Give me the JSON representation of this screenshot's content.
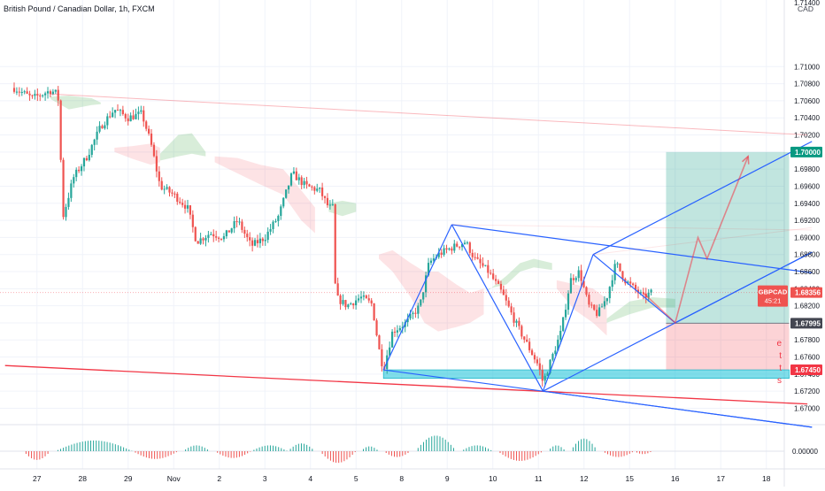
{
  "header": {
    "title": "British Pound / Canadian Dollar, 1h, FXCM",
    "currency": "CAD"
  },
  "chart_data": {
    "type": "candlestick",
    "symbol": "GBPCAD",
    "last_price": "1.68356",
    "countdown": "45:21",
    "ylim": [
      1.6686,
      1.7178
    ],
    "y_ticks": [
      "1.71000",
      "1.70800",
      "1.70600",
      "1.70400",
      "1.70200",
      "1.70000",
      "1.69800",
      "1.69600",
      "1.69400",
      "1.69200",
      "1.69000",
      "1.68800",
      "1.68600",
      "1.68400",
      "1.68200",
      "1.68000",
      "1.67800",
      "1.67600",
      "1.67400",
      "1.67200",
      "1.67000"
    ],
    "top_partial_tick": "1.71400",
    "x_ticks": [
      {
        "label": "27",
        "x": 0.5
      },
      {
        "label": "28",
        "x": 1.5
      },
      {
        "label": "29",
        "x": 2.5
      },
      {
        "label": "Nov",
        "x": 3.5
      },
      {
        "label": "2",
        "x": 4.5
      },
      {
        "label": "3",
        "x": 5.5
      },
      {
        "label": "4",
        "x": 6.5
      },
      {
        "label": "5",
        "x": 7.5
      },
      {
        "label": "8",
        "x": 8.5
      },
      {
        "label": "9",
        "x": 9.5
      },
      {
        "label": "10",
        "x": 10.5
      },
      {
        "label": "11",
        "x": 11.5
      },
      {
        "label": "12",
        "x": 12.5
      },
      {
        "label": "15",
        "x": 13.5
      },
      {
        "label": "16",
        "x": 14.5
      },
      {
        "label": "17",
        "x": 15.5
      },
      {
        "label": "18",
        "x": 16.5
      }
    ],
    "close_path": [
      [
        0.0,
        1.7075
      ],
      [
        0.4,
        1.7063
      ],
      [
        0.8,
        1.7072
      ],
      [
        0.95,
        1.7068
      ],
      [
        1.0,
        1.7048
      ],
      [
        1.05,
        1.692
      ],
      [
        1.3,
        1.697
      ],
      [
        1.6,
        1.6995
      ],
      [
        1.9,
        1.703
      ],
      [
        2.2,
        1.705
      ],
      [
        2.5,
        1.704
      ],
      [
        2.8,
        1.7045
      ],
      [
        3.0,
        1.701
      ],
      [
        3.2,
        1.696
      ],
      [
        3.5,
        1.695
      ],
      [
        3.8,
        1.6935
      ],
      [
        4.0,
        1.6895
      ],
      [
        4.3,
        1.6905
      ],
      [
        4.6,
        1.69
      ],
      [
        4.9,
        1.692
      ],
      [
        5.2,
        1.689
      ],
      [
        5.5,
        1.69
      ],
      [
        5.8,
        1.6925
      ],
      [
        6.1,
        1.6975
      ],
      [
        6.4,
        1.696
      ],
      [
        6.7,
        1.6955
      ],
      [
        6.9,
        1.6935
      ],
      [
        7.0,
        1.6935
      ],
      [
        7.05,
        1.683
      ],
      [
        7.3,
        1.682
      ],
      [
        7.6,
        1.683
      ],
      [
        7.85,
        1.6822
      ],
      [
        8.0,
        1.677
      ],
      [
        8.1,
        1.6745
      ],
      [
        8.3,
        1.679
      ],
      [
        8.6,
        1.68
      ],
      [
        8.9,
        1.682
      ],
      [
        9.1,
        1.687
      ],
      [
        9.3,
        1.688
      ],
      [
        9.6,
        1.6888
      ],
      [
        9.9,
        1.6895
      ],
      [
        10.1,
        1.6875
      ],
      [
        10.4,
        1.686
      ],
      [
        10.7,
        1.6835
      ],
      [
        11.0,
        1.68
      ],
      [
        11.3,
        1.677
      ],
      [
        11.5,
        1.675
      ],
      [
        11.6,
        1.673
      ],
      [
        11.8,
        1.676
      ],
      [
        12.0,
        1.679
      ],
      [
        12.2,
        1.685
      ],
      [
        12.4,
        1.686
      ],
      [
        12.6,
        1.682
      ],
      [
        12.8,
        1.681
      ],
      [
        13.0,
        1.683
      ],
      [
        13.2,
        1.687
      ],
      [
        13.4,
        1.685
      ],
      [
        13.6,
        1.684
      ],
      [
        13.8,
        1.683
      ],
      [
        14.0,
        1.6836
      ]
    ],
    "cloud_segments": [
      {
        "type": "bull",
        "points": [
          [
            0.8,
            1.7065,
            1.7062
          ],
          [
            1.2,
            1.7066,
            1.705
          ],
          [
            1.7,
            1.7063,
            1.7055
          ],
          [
            1.9,
            1.7058,
            1.7056
          ]
        ]
      },
      {
        "type": "bear",
        "points": [
          [
            2.2,
            1.7,
            1.7005
          ],
          [
            2.6,
            1.6992,
            1.7007
          ],
          [
            3.0,
            1.6985,
            1.701
          ],
          [
            3.2,
            1.6988,
            1.7005
          ]
        ]
      },
      {
        "type": "bull",
        "points": [
          [
            3.2,
            1.699,
            1.6998
          ],
          [
            3.6,
            1.6995,
            1.702
          ],
          [
            3.9,
            1.6998,
            1.7022
          ],
          [
            4.2,
            1.6995,
            1.7
          ]
        ]
      },
      {
        "type": "bear",
        "points": [
          [
            4.4,
            1.6988,
            1.6995
          ],
          [
            4.9,
            1.6975,
            1.6993
          ],
          [
            5.4,
            1.6962,
            1.6985
          ],
          [
            5.9,
            1.695,
            1.698
          ],
          [
            6.3,
            1.692,
            1.6955
          ],
          [
            6.6,
            1.6905,
            1.6935
          ]
        ]
      },
      {
        "type": "bull",
        "points": [
          [
            6.9,
            1.693,
            1.694
          ],
          [
            7.2,
            1.6925,
            1.6943
          ],
          [
            7.5,
            1.693,
            1.694
          ]
        ]
      },
      {
        "type": "bear",
        "points": [
          [
            8.0,
            1.6875,
            1.688
          ],
          [
            8.3,
            1.686,
            1.6885
          ],
          [
            8.7,
            1.683,
            1.687
          ],
          [
            9.0,
            1.68,
            1.686
          ],
          [
            9.3,
            1.679,
            1.686
          ],
          [
            9.7,
            1.6795,
            1.6845
          ],
          [
            10.0,
            1.68,
            1.6835
          ],
          [
            10.3,
            1.681,
            1.684
          ]
        ]
      },
      {
        "type": "bull",
        "points": [
          [
            10.4,
            1.684,
            1.6838
          ],
          [
            10.8,
            1.6845,
            1.6855
          ],
          [
            11.1,
            1.686,
            1.687
          ],
          [
            11.4,
            1.6865,
            1.6875
          ],
          [
            11.8,
            1.6862,
            1.687
          ]
        ]
      },
      {
        "type": "bear",
        "points": [
          [
            11.9,
            1.684,
            1.685
          ],
          [
            12.3,
            1.6815,
            1.6845
          ],
          [
            12.7,
            1.68,
            1.684
          ],
          [
            13.0,
            1.6785,
            1.6828
          ]
        ]
      },
      {
        "type": "bull",
        "points": [
          [
            13.0,
            1.68,
            1.6805
          ],
          [
            13.5,
            1.681,
            1.6825
          ],
          [
            14.0,
            1.6818,
            1.683
          ],
          [
            14.5,
            1.6818,
            1.6828
          ]
        ]
      }
    ],
    "channel_1": {
      "a": [
        8.1,
        1.6745
      ],
      "b": [
        9.6,
        1.6915
      ],
      "c": [
        11.6,
        1.672
      ]
    },
    "channel_2": {
      "a": [
        11.6,
        1.672
      ],
      "b": [
        12.7,
        1.688
      ],
      "c": [
        14.5,
        1.68
      ]
    },
    "support_line": {
      "from": [
        -0.2,
        1.675
      ],
      "to": [
        17.4,
        1.6705
      ]
    },
    "resistance_faint": {
      "from": [
        0.8,
        1.7068
      ],
      "to": [
        17.4,
        1.702
      ]
    },
    "demand_zone": {
      "x0": 8.1,
      "x1": 17.0,
      "y0": 1.6735,
      "y1": 1.6745
    },
    "position": {
      "x0": 14.3,
      "x1": 17.0,
      "entry": 1.67995,
      "target": 1.7,
      "stop": 1.6745
    },
    "projection": [
      [
        13.8,
        1.6835
      ],
      [
        14.5,
        1.68
      ],
      [
        15.0,
        1.69
      ],
      [
        15.2,
        1.6875
      ],
      [
        16.1,
        1.6995
      ]
    ],
    "levels": [
      {
        "price": "1.70000",
        "value": 1.7,
        "color": "#089981"
      },
      {
        "price": "1.67995",
        "value": 1.67995,
        "color": "#434651"
      },
      {
        "price": "1.67450",
        "value": 1.6745,
        "color": "#f23645"
      }
    ],
    "side_letters": [
      "e",
      "t",
      "t",
      "s"
    ],
    "oscillator_value": "0.00000",
    "oscillator": [
      {
        "x0": 0.2,
        "x1": 0.8,
        "amp": -0.45
      },
      {
        "x0": 0.9,
        "x1": 2.6,
        "amp": 0.55
      },
      {
        "x0": 2.6,
        "x1": 3.6,
        "amp": -0.4
      },
      {
        "x0": 3.7,
        "x1": 4.3,
        "amp": 0.3
      },
      {
        "x0": 4.4,
        "x1": 5.2,
        "amp": -0.35
      },
      {
        "x0": 5.2,
        "x1": 6.0,
        "amp": 0.3
      },
      {
        "x0": 6.0,
        "x1": 6.6,
        "amp": 0.4
      },
      {
        "x0": 6.7,
        "x1": 7.5,
        "amp": -0.6
      },
      {
        "x0": 7.6,
        "x1": 8.0,
        "amp": 0.25
      },
      {
        "x0": 8.1,
        "x1": 8.7,
        "amp": -0.3
      },
      {
        "x0": 8.8,
        "x1": 9.7,
        "amp": 0.8
      },
      {
        "x0": 9.8,
        "x1": 10.5,
        "amp": 0.3
      },
      {
        "x0": 10.6,
        "x1": 11.6,
        "amp": -0.5
      },
      {
        "x0": 11.7,
        "x1": 12.1,
        "amp": 0.3
      },
      {
        "x0": 12.2,
        "x1": 12.8,
        "amp": 0.65
      },
      {
        "x0": 12.9,
        "x1": 13.6,
        "amp": -0.3
      },
      {
        "x0": 13.6,
        "x1": 14.0,
        "amp": -0.15
      }
    ]
  }
}
